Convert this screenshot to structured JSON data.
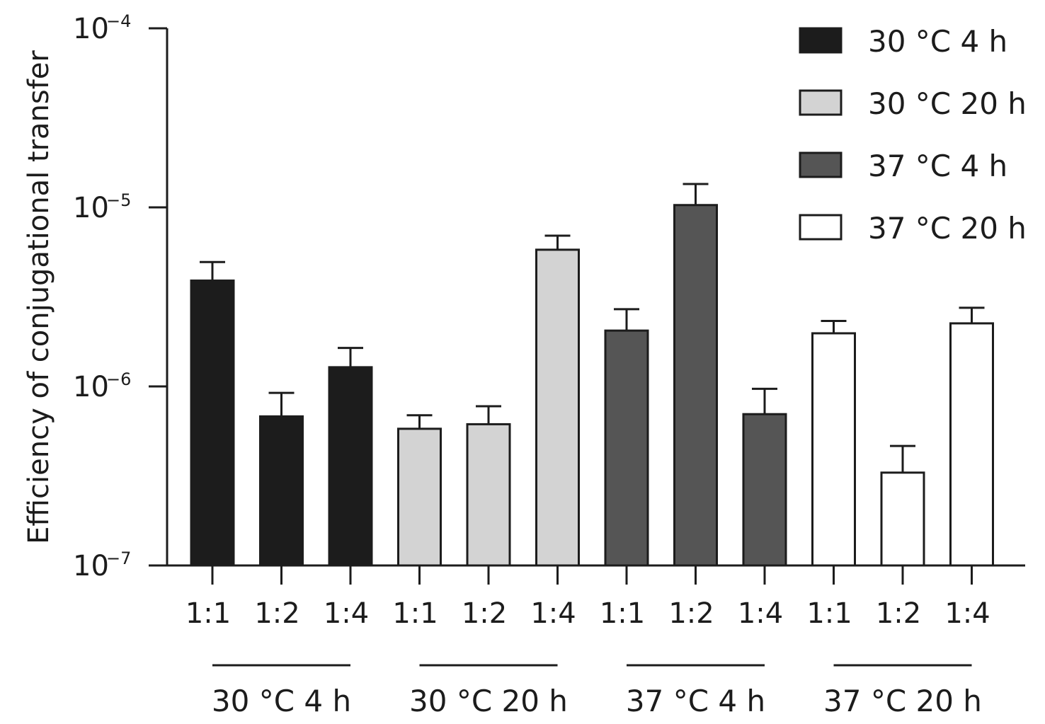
{
  "chart_data": {
    "type": "bar",
    "title": "",
    "ylabel": "Efficiency of conjugational transfer",
    "yscale": "log",
    "ylim": [
      1e-07,
      0.0001
    ],
    "yticks": [
      {
        "value": 1e-07,
        "base": "10",
        "exp": "−7"
      },
      {
        "value": 1e-06,
        "base": "10",
        "exp": "−6"
      },
      {
        "value": 1e-05,
        "base": "10",
        "exp": "−5"
      },
      {
        "value": 0.0001,
        "base": "10",
        "exp": "−4"
      }
    ],
    "legend_position": "top-right",
    "groups": [
      {
        "name": "30 °C 4 h",
        "color": "#1c1c1c",
        "categories": [
          "1:1",
          "1:2",
          "1:4"
        ],
        "values": [
          3.9e-06,
          6.8e-07,
          1.28e-06
        ],
        "errors_upper": [
          4.95e-06,
          9.2e-07,
          1.64e-06
        ]
      },
      {
        "name": "30 °C 20 h",
        "color": "#d3d3d3",
        "categories": [
          "1:1",
          "1:2",
          "1:4"
        ],
        "values": [
          5.8e-07,
          6.15e-07,
          5.8e-06
        ],
        "errors_upper": [
          6.9e-07,
          7.75e-07,
          6.95e-06
        ]
      },
      {
        "name": "37 °C 4 h",
        "color": "#555555",
        "categories": [
          "1:1",
          "1:2",
          "1:4"
        ],
        "values": [
          2.05e-06,
          1.03e-05,
          7e-07
        ],
        "errors_upper": [
          2.7e-06,
          1.35e-05,
          9.7e-07
        ]
      },
      {
        "name": "37 °C 20 h",
        "color": "#ffffff",
        "categories": [
          "1:1",
          "1:2",
          "1:4"
        ],
        "values": [
          1.98e-06,
          3.3e-07,
          2.25e-06
        ],
        "errors_upper": [
          2.32e-06,
          4.65e-07,
          2.75e-06
        ]
      }
    ]
  }
}
